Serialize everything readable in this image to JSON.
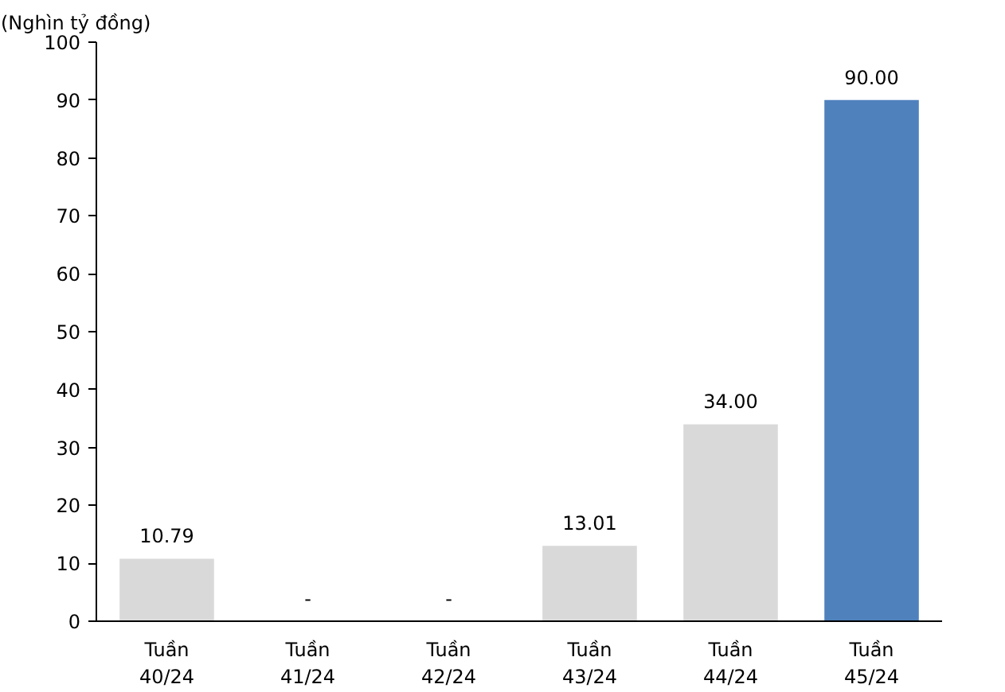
{
  "chart_data": {
    "type": "bar",
    "ylabel": "(Nghìn tỷ đồng)",
    "categories": [
      "Tuần\n40/24",
      "Tuần\n41/24",
      "Tuần\n42/24",
      "Tuần\n43/24",
      "Tuần\n44/24",
      "Tuần\n45/24"
    ],
    "values": [
      10.79,
      0,
      0,
      13.01,
      34,
      90
    ],
    "value_labels": [
      "10.79",
      "-",
      "-",
      "13.01",
      "34.00",
      "90.00"
    ],
    "colors": [
      "#d9d9d9",
      "#d9d9d9",
      "#d9d9d9",
      "#d9d9d9",
      "#d9d9d9",
      "#4f81bd"
    ],
    "ylim": [
      0,
      100
    ],
    "yticks": [
      0,
      10,
      20,
      30,
      40,
      50,
      60,
      70,
      80,
      90,
      100
    ],
    "grid": false
  }
}
